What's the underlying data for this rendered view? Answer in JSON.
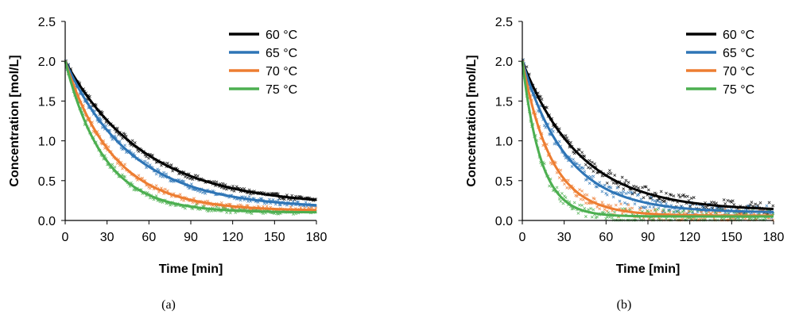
{
  "chart_data": [
    {
      "type": "line",
      "panel": "a",
      "caption": "(a)",
      "xlabel": "Time [min]",
      "ylabel": "Concentration [mol/L]",
      "xlim": [
        0,
        180
      ],
      "ylim": [
        0,
        2.5
      ],
      "xticks": [
        "0",
        "30",
        "60",
        "90",
        "120",
        "150",
        "180"
      ],
      "yticks": [
        "0.0",
        "0.5",
        "1.0",
        "1.5",
        "2.0",
        "2.5"
      ],
      "legend_position": "top-right",
      "series": [
        {
          "name": "60 °C",
          "color": "#000000",
          "c0": 2.0,
          "cinf": 0.18,
          "k": 0.0175
        },
        {
          "name": "65 °C",
          "color": "#2E75B6",
          "c0": 2.0,
          "cinf": 0.15,
          "k": 0.021
        },
        {
          "name": "70 °C",
          "color": "#ED7D31",
          "c0": 2.0,
          "cinf": 0.12,
          "k": 0.029
        },
        {
          "name": "75 °C",
          "color": "#4CAF50",
          "c0": 2.0,
          "cinf": 0.1,
          "k": 0.036
        }
      ]
    },
    {
      "type": "line",
      "panel": "b",
      "caption": "(b)",
      "xlabel": "Time [min]",
      "ylabel": "Concentration [mol/L]",
      "xlim": [
        0,
        180
      ],
      "ylim": [
        0,
        2.5
      ],
      "xticks": [
        "0",
        "30",
        "60",
        "90",
        "120",
        "150",
        "180"
      ],
      "yticks": [
        "0.0",
        "0.5",
        "1.0",
        "1.5",
        "2.0",
        "2.5"
      ],
      "legend_position": "top-right",
      "series": [
        {
          "name": "60 °C",
          "color": "#000000",
          "c0": 2.0,
          "cinf": 0.12,
          "k": 0.024
        },
        {
          "name": "65 °C",
          "color": "#2E75B6",
          "c0": 2.0,
          "cinf": 0.1,
          "k": 0.031
        },
        {
          "name": "70 °C",
          "color": "#ED7D31",
          "c0": 2.0,
          "cinf": 0.06,
          "k": 0.048
        },
        {
          "name": "75 °C",
          "color": "#4CAF50",
          "c0": 2.0,
          "cinf": 0.05,
          "k": 0.075
        }
      ]
    }
  ]
}
